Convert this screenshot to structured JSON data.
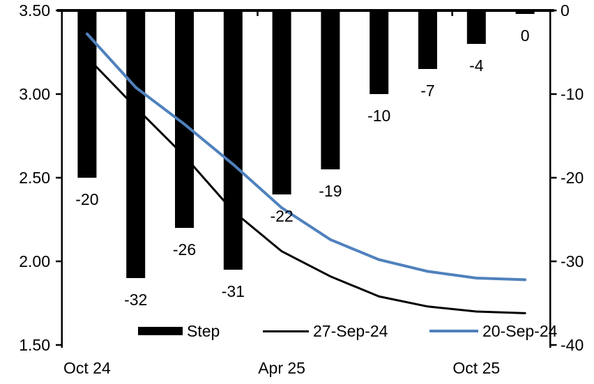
{
  "chart_data": {
    "type": "combo-bar-line",
    "title": "",
    "num_slots": 10,
    "series": [
      {
        "name": "Step",
        "type": "bar",
        "axis": "right",
        "color": "#000000",
        "values": [
          -20,
          -32,
          -26,
          -31,
          -22,
          -19,
          -10,
          -7,
          -4,
          0
        ],
        "labels": [
          "-20",
          "-32",
          "-26",
          "-31",
          "-22",
          "-19",
          "-10",
          "-7",
          "-4",
          "0"
        ]
      },
      {
        "name": "27-Sep-24",
        "type": "line",
        "axis": "left",
        "color": "#000000",
        "stroke_width": 3,
        "values": [
          3.22,
          2.92,
          2.63,
          2.3,
          2.06,
          1.91,
          1.79,
          1.73,
          1.7,
          1.69
        ]
      },
      {
        "name": "20-Sep-24",
        "type": "line",
        "axis": "left",
        "color": "#4F81BD",
        "stroke_width": 4,
        "values": [
          3.36,
          3.04,
          2.82,
          2.58,
          2.32,
          2.13,
          2.01,
          1.94,
          1.9,
          1.89
        ]
      }
    ],
    "left_axis": {
      "ticks": [
        "3.50",
        "3.00",
        "2.50",
        "2.00",
        "1.50"
      ],
      "min": 1.5,
      "max": 3.5
    },
    "right_axis": {
      "ticks": [
        "0",
        "-10",
        "-20",
        "-30",
        "-40"
      ],
      "min": -40,
      "max": 0
    },
    "x_axis": {
      "labels": [
        {
          "text": "Oct 24",
          "slot": 0
        },
        {
          "text": "Apr 25",
          "slot": 4
        },
        {
          "text": "Oct 25",
          "slot": 8
        }
      ]
    },
    "legend": [
      {
        "label": "Step",
        "swatch": "bar",
        "color": "#000000"
      },
      {
        "label": "27-Sep-24",
        "swatch": "line",
        "color": "#000000"
      },
      {
        "label": "20-Sep-24",
        "swatch": "line",
        "color": "#4F81BD"
      }
    ],
    "grid": "off",
    "legend_position": "bottom-inside"
  }
}
